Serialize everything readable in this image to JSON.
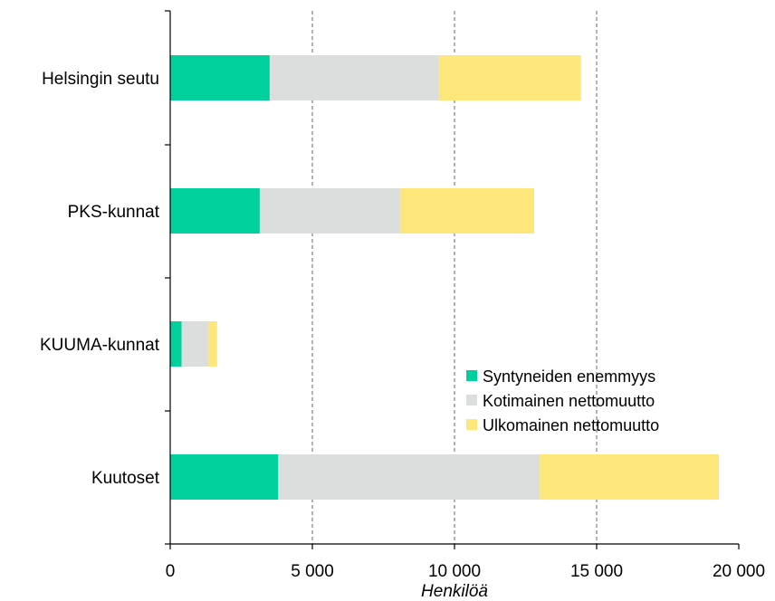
{
  "chart_data": {
    "type": "bar",
    "orientation": "horizontal",
    "stacked": true,
    "title": "",
    "xlabel": "Henkilöä",
    "ylabel": "",
    "xlim": [
      0,
      20000
    ],
    "x_ticks": [
      0,
      5000,
      10000,
      15000,
      20000
    ],
    "x_tick_labels": [
      "0",
      "5 000",
      "10 000",
      "15 000",
      "20 000"
    ],
    "grid": "vertical dashed",
    "categories": [
      "Helsingin seutu",
      "PKS-kunnat",
      "KUUMA-kunnat",
      "Kuutoset"
    ],
    "series": [
      {
        "name": "Syntyneiden enemmyys",
        "color": "#00d09c",
        "values": [
          3500,
          3150,
          400,
          3800
        ]
      },
      {
        "name": "Kotimainen nettomuutto",
        "color": "#dcdddd",
        "values": [
          5950,
          4950,
          950,
          9200
        ]
      },
      {
        "name": "Ulkomainen nettomuutto",
        "color": "#fde67a",
        "values": [
          5000,
          4700,
          300,
          6300
        ]
      }
    ],
    "legend_position": "bottom-right"
  }
}
